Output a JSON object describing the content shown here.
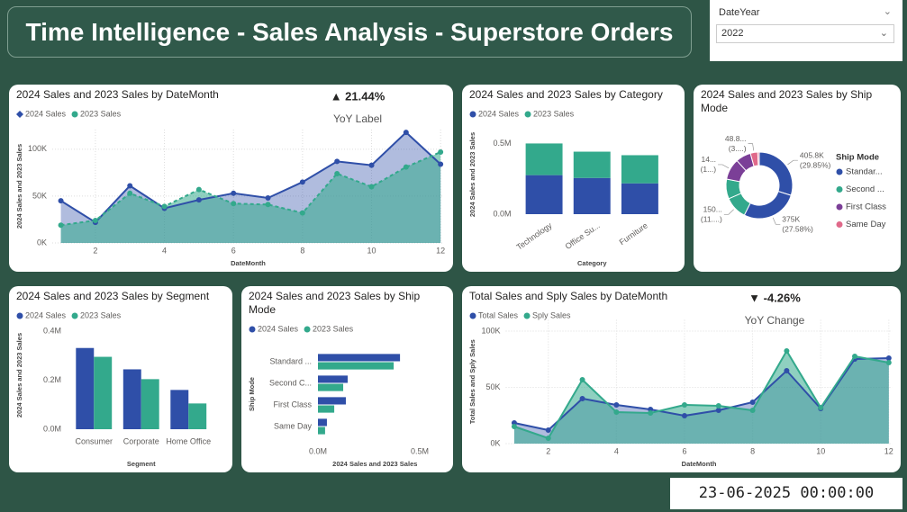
{
  "header": {
    "title": "Time Intelligence - Sales Analysis - Superstore Orders"
  },
  "slicer": {
    "label": "DateYear",
    "value": "2022"
  },
  "timestamp": "23-06-2025 00:00:00",
  "chart_data": [
    {
      "type": "line",
      "title": "2024 Sales and 2023 Sales by DateMonth",
      "x_label": "DateMonth",
      "y_label": "2024 Sales and 2023 Sales",
      "x": [
        1,
        2,
        3,
        4,
        5,
        6,
        7,
        8,
        9,
        10,
        11,
        12
      ],
      "xlim": [
        0.75,
        12.1
      ],
      "xticks": [
        2,
        4,
        6,
        8,
        10,
        12
      ],
      "ylim": [
        0,
        121000
      ],
      "yticks": [
        {
          "value": 0,
          "label": "0K"
        },
        {
          "value": 50000,
          "label": "50K"
        },
        {
          "value": 100000,
          "label": "100K"
        }
      ],
      "grid": true,
      "area": true,
      "kpi": {
        "text": "▲ 21.44%",
        "caption": "YoY Label"
      },
      "series": [
        {
          "name": "2024 Sales",
          "color": "#2f4fa8",
          "legend_marker": "diamond",
          "values": [
            45000,
            22000,
            61000,
            37000,
            46000,
            53000,
            48000,
            65000,
            87000,
            83000,
            118000,
            84000
          ]
        },
        {
          "name": "2023 Sales",
          "color": "#33a98c",
          "line_style": "dashed",
          "values": [
            19000,
            24000,
            53000,
            39000,
            57000,
            42000,
            41000,
            32000,
            74000,
            60000,
            81000,
            97000
          ]
        }
      ]
    },
    {
      "type": "bar",
      "stacked": true,
      "title": "2024 Sales and 2023 Sales by Category",
      "x_label": "Category",
      "y_label": "2024 Sales and 2023 Sales",
      "categories": [
        "Technology",
        "Office Su...",
        "Furniture"
      ],
      "label_rotation": -35,
      "ylim": [
        0,
        560000
      ],
      "yticks": [
        {
          "value": 0,
          "label": "0.0M"
        },
        {
          "value": 500000,
          "label": "0.5M"
        }
      ],
      "grid": false,
      "series": [
        {
          "name": "2024 Sales",
          "color": "#2f4fa8",
          "values": [
            276000,
            256000,
            218000
          ]
        },
        {
          "name": "2023 Sales",
          "color": "#33a98c",
          "values": [
            224000,
            186000,
            199000
          ]
        }
      ]
    },
    {
      "type": "pie",
      "donut": true,
      "title": "2024 Sales and 2023 Sales by Ship Mode",
      "legend_title": "Ship Mode",
      "legend": [
        "Standar...",
        "Second ...",
        "First Class",
        "Same Day"
      ],
      "legend_colors": [
        "#2f4fa8",
        "#33a98c",
        "#7b3f97",
        "#e0698a"
      ],
      "values": [
        405800,
        375000,
        150000,
        130000,
        140000,
        100000,
        48800,
        10000
      ],
      "colors": [
        "#2f4fa8",
        "#2f4fa8",
        "#33a98c",
        "#33a98c",
        "#7b3f97",
        "#7b3f97",
        "#e0698a",
        "#e0698a"
      ],
      "value_labels": [
        [
          "405.8K",
          "(29.85%)"
        ],
        [
          "375K",
          "(27.58%)"
        ],
        [
          "150...",
          "(11....)"
        ],
        null,
        [
          "14...",
          "(1...)"
        ],
        null,
        [
          "48.8...",
          "(3....)"
        ],
        null
      ]
    },
    {
      "type": "bar",
      "title": "2024 Sales and 2023 Sales by Segment",
      "x_label": "Segment",
      "y_label": "2024 Sales and 2023 Sales",
      "categories": [
        "Consumer",
        "Corporate",
        "Home Office"
      ],
      "ylim": [
        0,
        440000
      ],
      "yticks": [
        {
          "value": 0,
          "label": "0.0M"
        },
        {
          "value": 200000,
          "label": "0.2M"
        },
        {
          "value": 400000,
          "label": "0.4M"
        }
      ],
      "grid": false,
      "series": [
        {
          "name": "2024 Sales",
          "color": "#2f4fa8",
          "values": [
            331000,
            244000,
            160000
          ]
        },
        {
          "name": "2023 Sales",
          "color": "#33a98c",
          "values": [
            295000,
            204000,
            105000
          ]
        }
      ]
    },
    {
      "type": "bar",
      "orientation": "horizontal",
      "title": "2024 Sales and 2023 Sales by Ship Mode",
      "x_label": "2024 Sales and 2023 Sales",
      "y_label": "Ship Mode",
      "categories": [
        "Standard ...",
        "Second C...",
        "First Class",
        "Same Day"
      ],
      "xlim": [
        0,
        560000
      ],
      "xticks": [
        {
          "value": 0,
          "label": "0.0M"
        },
        {
          "value": 500000,
          "label": "0.5M"
        }
      ],
      "grid": false,
      "series": [
        {
          "name": "2024 Sales",
          "color": "#2f4fa8",
          "values": [
            403000,
            146000,
            137000,
            44000
          ]
        },
        {
          "name": "2023 Sales",
          "color": "#33a98c",
          "values": [
            372000,
            124000,
            80000,
            35000
          ]
        }
      ]
    },
    {
      "type": "line",
      "title": "Total Sales and Sply Sales by DateMonth",
      "x_label": "DateMonth",
      "y_label": "Total Sales and Sply Sales",
      "x": [
        1,
        2,
        3,
        4,
        5,
        6,
        7,
        8,
        9,
        10,
        11,
        12
      ],
      "xlim": [
        0.75,
        12.1
      ],
      "xticks": [
        2,
        4,
        6,
        8,
        10,
        12
      ],
      "ylim": [
        0,
        110000
      ],
      "yticks": [
        {
          "value": 0,
          "label": "0K"
        },
        {
          "value": 50000,
          "label": "50K"
        },
        {
          "value": 100000,
          "label": "100K"
        }
      ],
      "grid": true,
      "area": true,
      "kpi": {
        "text": "▼ -4.26%",
        "caption": "YoY Change"
      },
      "series": [
        {
          "name": "Total Sales",
          "color": "#2f4fa8",
          "values": [
            18400,
            12000,
            40000,
            34400,
            30400,
            24800,
            29600,
            36800,
            64800,
            31200,
            75200,
            76000
          ]
        },
        {
          "name": "Sply Sales",
          "color": "#33a98c",
          "values": [
            15200,
            4800,
            56800,
            28000,
            27200,
            34400,
            33600,
            29600,
            82400,
            32000,
            77600,
            72000
          ]
        }
      ]
    }
  ]
}
